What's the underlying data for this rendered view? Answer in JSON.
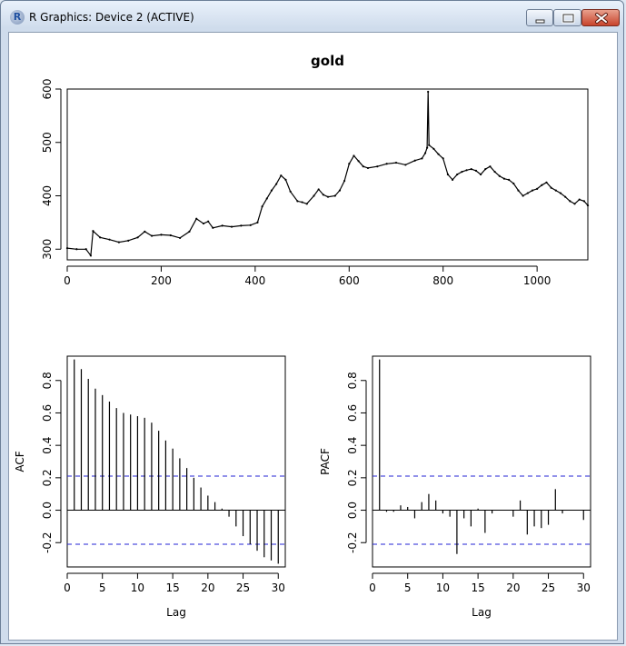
{
  "window": {
    "title": "R Graphics: Device 2 (ACTIVE)",
    "icon_letter": "R",
    "controls": [
      "minimize-icon",
      "maximize-icon",
      "close-icon"
    ]
  },
  "chart_data": [
    {
      "type": "line",
      "title": "gold",
      "xlabel": "",
      "ylabel": "",
      "xlim": [
        0,
        1108
      ],
      "ylim": [
        280,
        600
      ],
      "x_ticks": [
        0,
        200,
        400,
        600,
        800,
        1000
      ],
      "y_ticks": [
        300,
        400,
        500,
        600
      ],
      "grid": false,
      "series": [
        {
          "points": [
            [
              0,
              302
            ],
            [
              20,
              300
            ],
            [
              40,
              300
            ],
            [
              50,
              288
            ],
            [
              55,
              334
            ],
            [
              70,
              322
            ],
            [
              90,
              318
            ],
            [
              110,
              313
            ],
            [
              130,
              316
            ],
            [
              150,
              322
            ],
            [
              165,
              333
            ],
            [
              180,
              325
            ],
            [
              200,
              327
            ],
            [
              220,
              326
            ],
            [
              240,
              321
            ],
            [
              260,
              333
            ],
            [
              275,
              357
            ],
            [
              290,
              348
            ],
            [
              300,
              352
            ],
            [
              310,
              340
            ],
            [
              330,
              344
            ],
            [
              350,
              342
            ],
            [
              370,
              344
            ],
            [
              390,
              345
            ],
            [
              405,
              350
            ],
            [
              415,
              380
            ],
            [
              425,
              395
            ],
            [
              435,
              410
            ],
            [
              445,
              422
            ],
            [
              455,
              438
            ],
            [
              465,
              430
            ],
            [
              475,
              408
            ],
            [
              490,
              390
            ],
            [
              500,
              388
            ],
            [
              510,
              385
            ],
            [
              525,
              400
            ],
            [
              535,
              412
            ],
            [
              545,
              402
            ],
            [
              555,
              398
            ],
            [
              570,
              400
            ],
            [
              580,
              410
            ],
            [
              590,
              428
            ],
            [
              600,
              460
            ],
            [
              610,
              475
            ],
            [
              620,
              465
            ],
            [
              630,
              455
            ],
            [
              640,
              452
            ],
            [
              660,
              455
            ],
            [
              680,
              460
            ],
            [
              700,
              462
            ],
            [
              720,
              458
            ],
            [
              740,
              466
            ],
            [
              755,
              470
            ],
            [
              762,
              480
            ],
            [
              766,
              490
            ],
            [
              768,
              595
            ],
            [
              770,
              495
            ],
            [
              780,
              488
            ],
            [
              790,
              478
            ],
            [
              800,
              470
            ],
            [
              810,
              440
            ],
            [
              820,
              430
            ],
            [
              830,
              440
            ],
            [
              840,
              445
            ],
            [
              850,
              448
            ],
            [
              860,
              450
            ],
            [
              870,
              447
            ],
            [
              880,
              440
            ],
            [
              890,
              450
            ],
            [
              900,
              455
            ],
            [
              910,
              445
            ],
            [
              920,
              437
            ],
            [
              930,
              432
            ],
            [
              940,
              430
            ],
            [
              950,
              423
            ],
            [
              960,
              410
            ],
            [
              970,
              400
            ],
            [
              980,
              405
            ],
            [
              990,
              410
            ],
            [
              1000,
              413
            ],
            [
              1010,
              420
            ],
            [
              1020,
              425
            ],
            [
              1030,
              415
            ],
            [
              1040,
              410
            ],
            [
              1050,
              405
            ],
            [
              1060,
              398
            ],
            [
              1070,
              390
            ],
            [
              1080,
              385
            ],
            [
              1090,
              393
            ],
            [
              1100,
              390
            ],
            [
              1108,
              382
            ]
          ]
        }
      ]
    },
    {
      "type": "bar",
      "title": "",
      "xlabel": "Lag",
      "ylabel": "ACF",
      "xlim": [
        0,
        31
      ],
      "ylim": [
        -0.35,
        0.95
      ],
      "x_ticks": [
        0,
        5,
        10,
        15,
        20,
        25,
        30
      ],
      "y_ticks": [
        -0.2,
        0.0,
        0.2,
        0.4,
        0.6,
        0.8
      ],
      "conf_limit": 0.21,
      "lags": [
        1,
        2,
        3,
        4,
        5,
        6,
        7,
        8,
        9,
        10,
        11,
        12,
        13,
        14,
        15,
        16,
        17,
        18,
        19,
        20,
        21,
        22,
        23,
        24,
        25,
        26,
        27,
        28,
        29,
        30
      ],
      "values": [
        0.93,
        0.87,
        0.81,
        0.75,
        0.71,
        0.67,
        0.63,
        0.6,
        0.59,
        0.58,
        0.57,
        0.54,
        0.49,
        0.43,
        0.38,
        0.32,
        0.26,
        0.2,
        0.14,
        0.09,
        0.05,
        0.01,
        -0.04,
        -0.1,
        -0.16,
        -0.21,
        -0.25,
        -0.29,
        -0.31,
        -0.33
      ]
    },
    {
      "type": "bar",
      "title": "",
      "xlabel": "Lag",
      "ylabel": "PACF",
      "xlim": [
        0,
        31
      ],
      "ylim": [
        -0.35,
        0.95
      ],
      "x_ticks": [
        0,
        5,
        10,
        15,
        20,
        25,
        30
      ],
      "y_ticks": [
        -0.2,
        0.0,
        0.2,
        0.4,
        0.6,
        0.8
      ],
      "conf_limit": 0.21,
      "lags": [
        1,
        2,
        3,
        4,
        5,
        6,
        7,
        8,
        9,
        10,
        11,
        12,
        13,
        14,
        15,
        16,
        17,
        18,
        19,
        20,
        21,
        22,
        23,
        24,
        25,
        26,
        27,
        28,
        29,
        30
      ],
      "values": [
        0.93,
        -0.01,
        -0.01,
        0.03,
        0.02,
        -0.05,
        0.05,
        0.1,
        0.06,
        -0.02,
        -0.04,
        -0.27,
        -0.05,
        -0.1,
        0.01,
        -0.14,
        -0.02,
        0.0,
        0.0,
        -0.04,
        0.06,
        -0.15,
        -0.1,
        -0.11,
        -0.09,
        0.13,
        -0.02,
        0.0,
        0.0,
        -0.06
      ]
    }
  ],
  "colors": {
    "series": "#000000",
    "conf_line": "#2323d4",
    "axis": "#000000"
  }
}
